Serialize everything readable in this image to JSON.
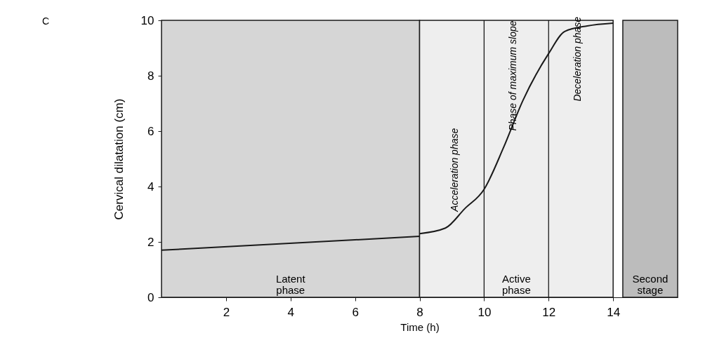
{
  "chart_data": {
    "type": "line",
    "xlabel": "Time (h)",
    "ylabel": "Cervical dilatation (cm)",
    "series": [
      {
        "color": "#1a1a1a",
        "x": [
          0,
          8
        ],
        "values": [
          1.7,
          2.2
        ]
      },
      {
        "color": "#1a1a1a",
        "x": [
          8,
          8.8,
          9.4,
          10,
          10.6,
          11.2,
          12,
          12.5,
          13.2,
          14
        ],
        "values": [
          2.3,
          2.5,
          3.2,
          3.9,
          5.4,
          7.1,
          8.8,
          9.6,
          9.8,
          9.9
        ]
      }
    ],
    "xlim": [
      0,
      16
    ],
    "xticks": [
      2,
      4,
      6,
      8,
      10,
      12,
      14
    ],
    "ylim": [
      0,
      10
    ],
    "yticks": [
      0,
      2,
      4,
      6,
      8,
      10
    ],
    "ref_lines": [
      {
        "axis": "x",
        "value": 10,
        "color": "#1a1a1a"
      },
      {
        "axis": "x",
        "value": 12,
        "color": "#1a1a1a"
      }
    ],
    "bands": [
      {
        "axis": "x",
        "from": 0,
        "to": 8,
        "label": "Latent phase",
        "color": "#d6d6d6"
      },
      {
        "axis": "x",
        "from": 8,
        "to": 14,
        "label": "Active phase",
        "color": "#eeeeee"
      },
      {
        "axis": "x",
        "from": 14.3,
        "to": 16,
        "label": "Second stage",
        "color": "#bcbcbc"
      }
    ],
    "annotations": [
      "Acceleration phase",
      "Phase of maximum slope",
      "Deceleration phase",
      "C"
    ]
  }
}
